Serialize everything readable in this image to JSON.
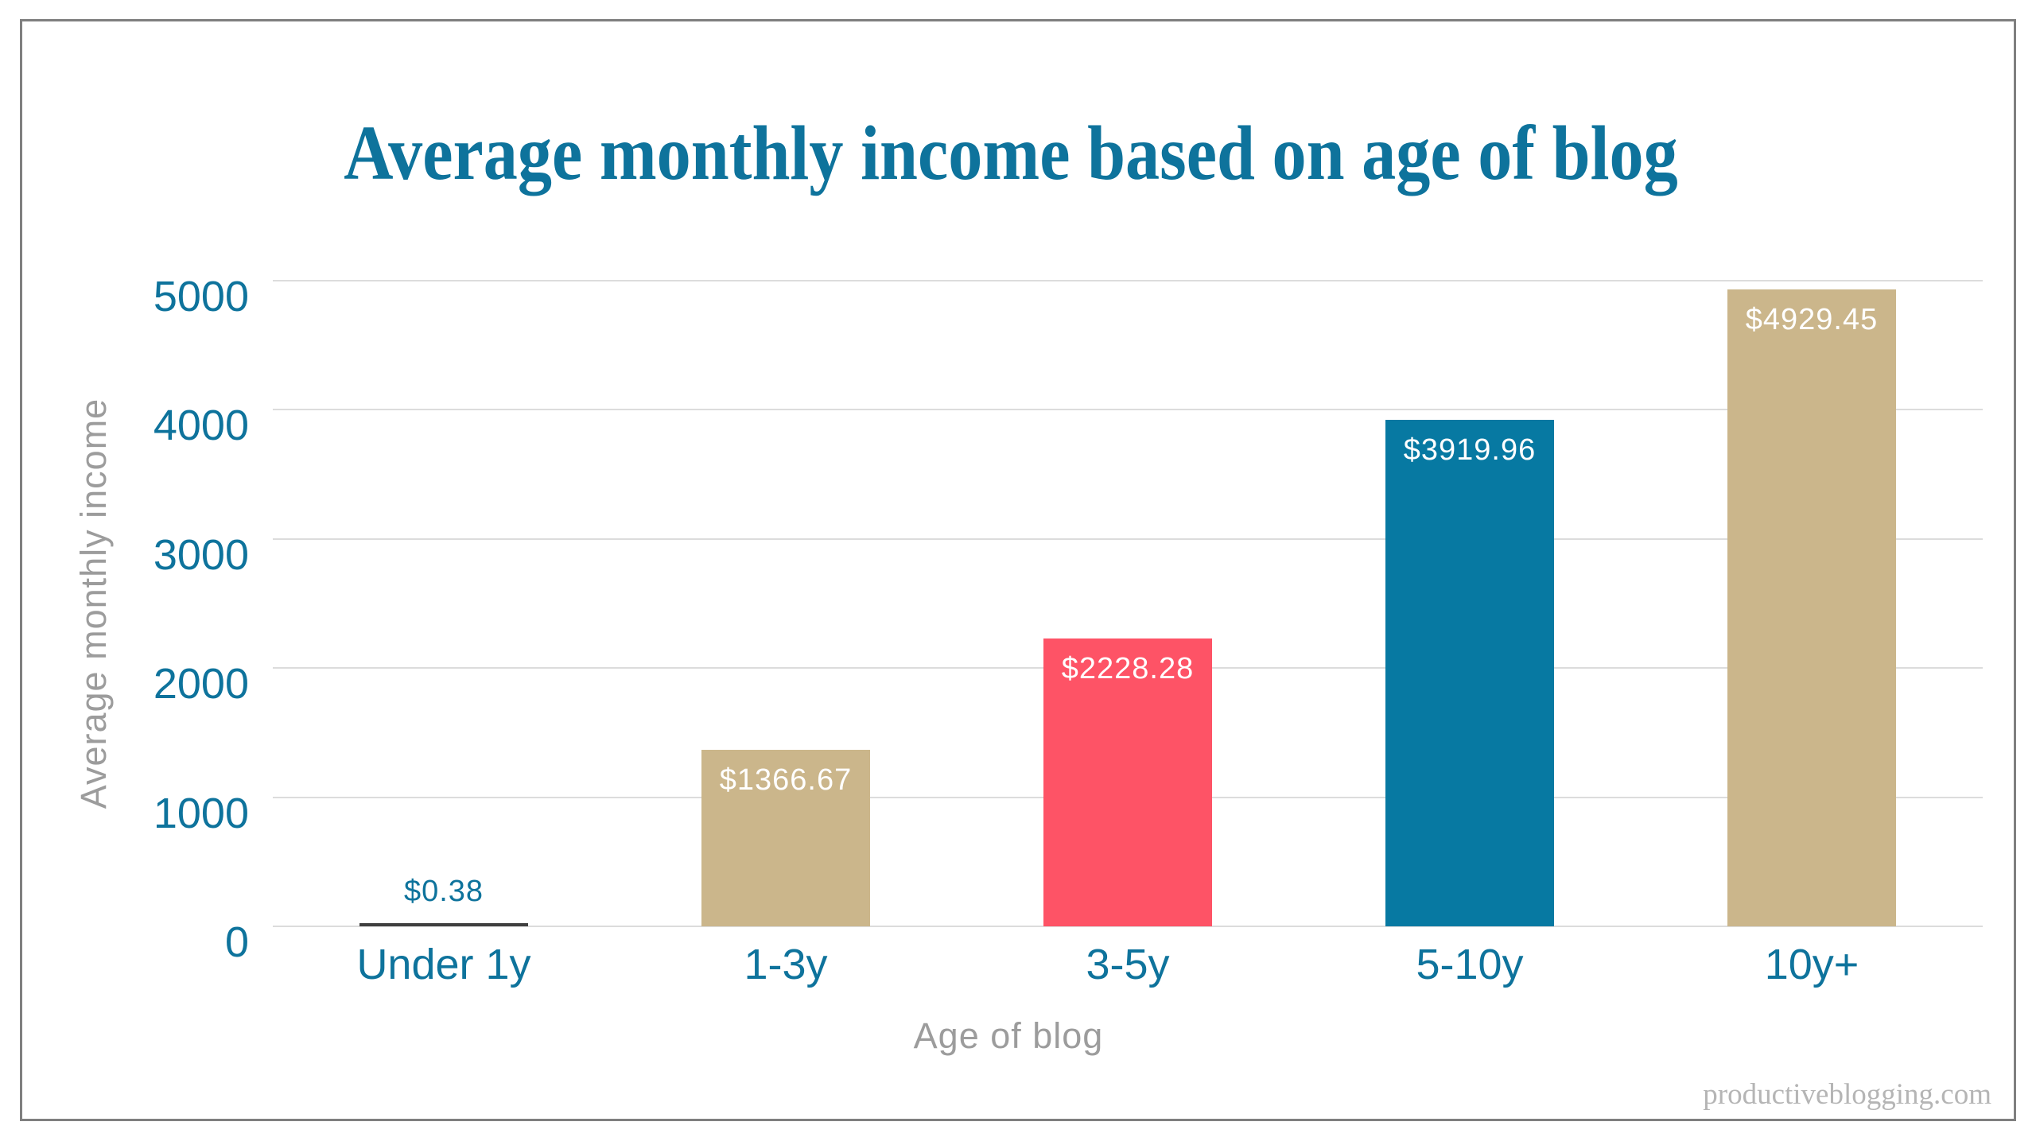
{
  "page": {
    "watermark": "productiveblogging.com"
  },
  "style": {
    "title_color": "#0e739c",
    "tick_label_color": "#0e739c",
    "axis_title_color": "#9c9c9c",
    "gridline_color": "#dcdcdc",
    "frame_border_color": "#7f7f7f",
    "bar_label_color_inside": "#ffffff",
    "bar_label_color_outside": "#0e739c",
    "watermark_color": "#b5b5b5"
  },
  "chart_data": {
    "type": "bar",
    "title": "Average monthly income based on age of blog",
    "xlabel": "Age of blog",
    "ylabel": "Average monthly income",
    "categories": [
      "Under 1y",
      "1-3y",
      "3-5y",
      "5-10y",
      "10y+"
    ],
    "values": [
      0.38,
      1366.67,
      2228.28,
      3919.96,
      4929.45
    ],
    "value_labels": [
      "$0.38",
      "$1366.67",
      "$2228.28",
      "$3919.96",
      "$4929.45"
    ],
    "bar_colors": [
      "#3f3f3f",
      "#cbb68b",
      "#fe5366",
      "#0779a2",
      "#cbb68b"
    ],
    "ylim": [
      0,
      5000
    ],
    "yticks": [
      0,
      1000,
      2000,
      3000,
      4000,
      5000
    ],
    "grid": true,
    "legend": false
  }
}
